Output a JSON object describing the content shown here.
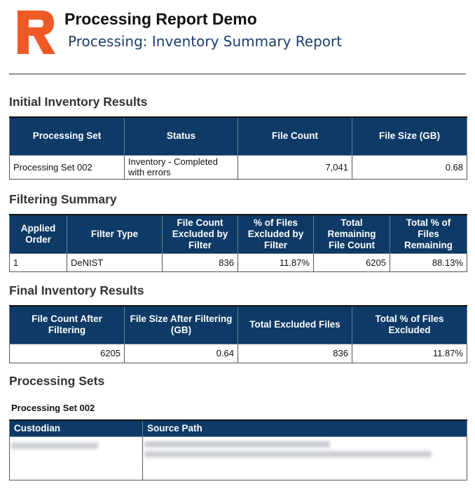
{
  "header": {
    "title": "Processing Report Demo",
    "subtitle": "Processing: Inventory Summary Report"
  },
  "sections": [
    {
      "heading": "Initial Inventory Results",
      "table": {
        "columns": [
          "Processing Set",
          "Status",
          "File Count",
          "File Size (GB)"
        ],
        "rows": [
          [
            "Processing Set 002",
            "Inventory - Completed with errors",
            "7,041",
            "0.68"
          ]
        ]
      }
    },
    {
      "heading": "Filtering Summary",
      "table": {
        "columns": [
          "Applied Order",
          "Filter Type",
          "File Count Excluded by Filter",
          "% of Files Excluded by Filter",
          "Total Remaining File Count",
          "Total % of Files Remaining"
        ],
        "rows": [
          [
            "1",
            "DeNIST",
            "836",
            "11.87%",
            "6205",
            "88.13%"
          ]
        ]
      }
    },
    {
      "heading": "Final Inventory Results",
      "table": {
        "columns": [
          "File Count After Filtering",
          "File Size After Filtering (GB)",
          "Total Excluded Files",
          "Total % of Files Excluded"
        ],
        "rows": [
          [
            "6205",
            "0.64",
            "836",
            "11.87%"
          ]
        ]
      }
    },
    {
      "heading": "Processing Sets",
      "subheading": "Processing Set 002",
      "table": {
        "columns": [
          "Custodian",
          "Source Path"
        ],
        "rows": []
      }
    }
  ]
}
